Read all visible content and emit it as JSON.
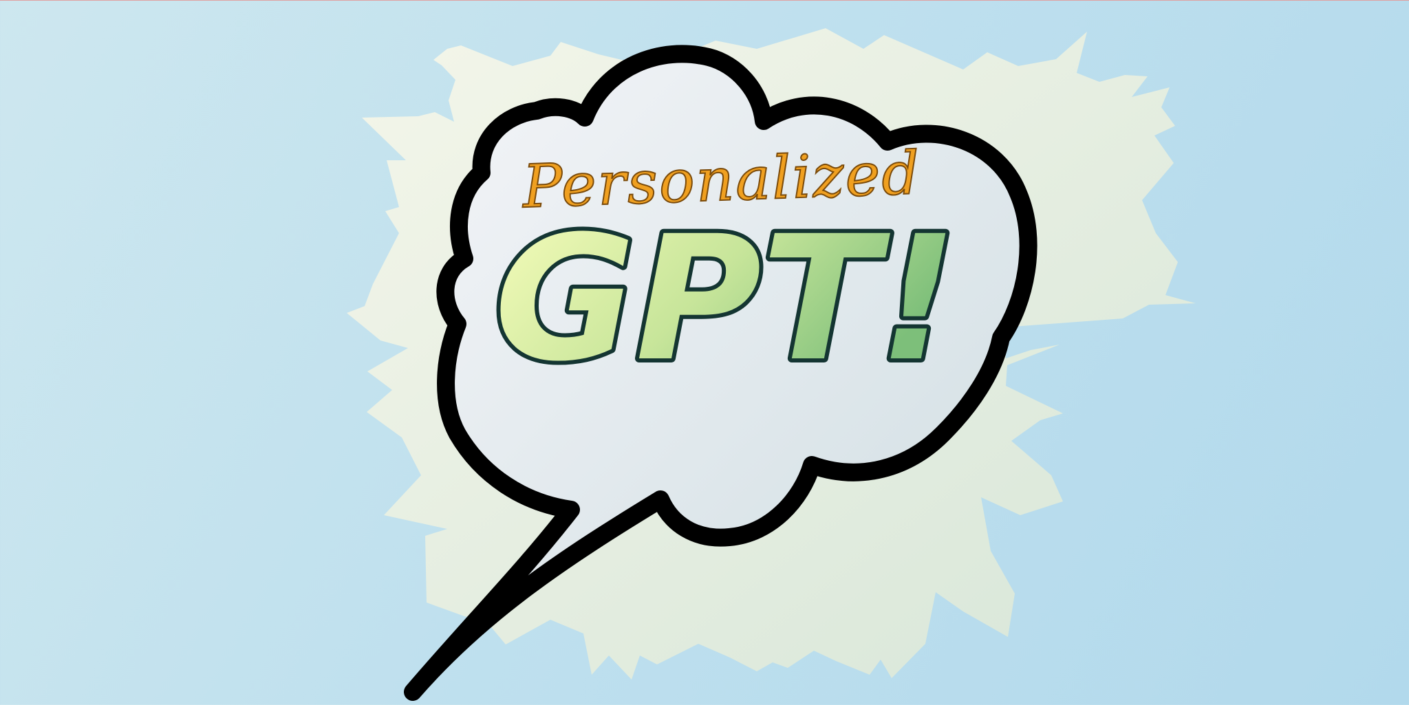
{
  "banner": {
    "subtitle": "Personalized",
    "headline": "GPT!"
  },
  "colors": {
    "background_light": "#cde7ef",
    "background_dark": "#b2d9ec",
    "burst": "#eef2e2",
    "bubble_fill_light": "#f1f3f6",
    "bubble_fill_dark": "#d2dee3",
    "bubble_outline": "#000000",
    "subtitle_fill": "#f0a020",
    "subtitle_stroke": "#7a4a0a",
    "headline_gradient_start": "#f7fdbb",
    "headline_gradient_end": "#7dbf7a",
    "headline_stroke": "#143532"
  },
  "icons": [
    "starburst-shape",
    "speech-bubble-shape"
  ]
}
